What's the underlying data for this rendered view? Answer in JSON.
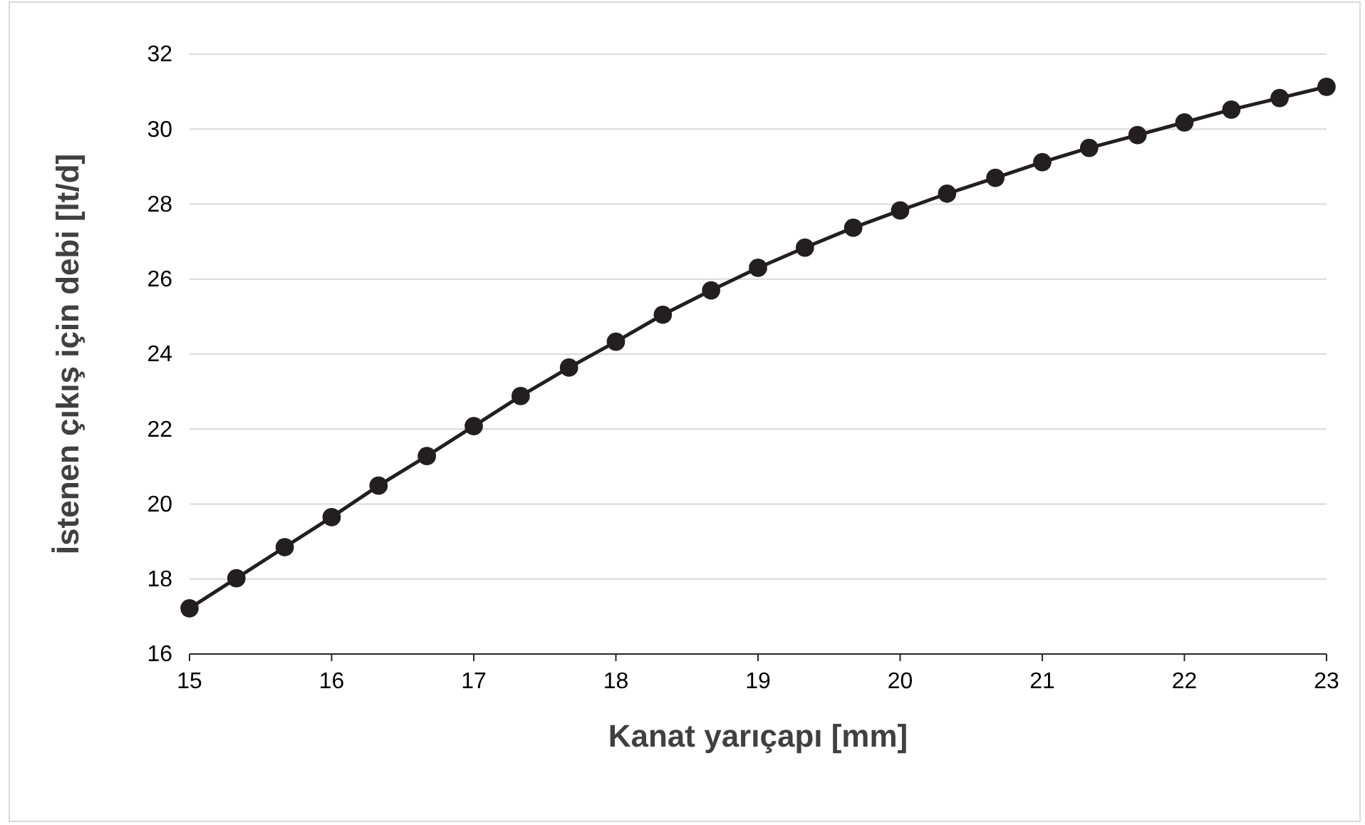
{
  "chart_data": {
    "type": "line",
    "xlabel": "Kanat yarıçapı [mm]",
    "ylabel": "İstenen çıkış için debi [lt/d]",
    "x": [
      15,
      15.33,
      15.67,
      16,
      16.33,
      16.67,
      17,
      17.33,
      17.67,
      18,
      18.33,
      18.67,
      19,
      19.33,
      19.67,
      20,
      20.33,
      20.67,
      21,
      21.33,
      21.67,
      22,
      22.33,
      22.67,
      23
    ],
    "series": [
      {
        "color": "#231f20",
        "values": [
          17.22,
          18.02,
          18.85,
          19.65,
          20.49,
          21.28,
          22.08,
          22.88,
          23.64,
          24.33,
          25.05,
          25.7,
          26.3,
          26.84,
          27.37,
          27.83,
          28.28,
          28.7,
          29.12,
          29.5,
          29.84,
          30.18,
          30.52,
          30.83,
          31.13
        ]
      }
    ],
    "xlim": [
      15,
      23
    ],
    "xticks": [
      15,
      16,
      17,
      18,
      19,
      20,
      21,
      22,
      23
    ],
    "ylim": [
      16,
      32
    ],
    "yticks": [
      16,
      18,
      20,
      22,
      24,
      26,
      28,
      30,
      32
    ],
    "grid": "y",
    "marker": "circle",
    "line_style": "solid"
  }
}
